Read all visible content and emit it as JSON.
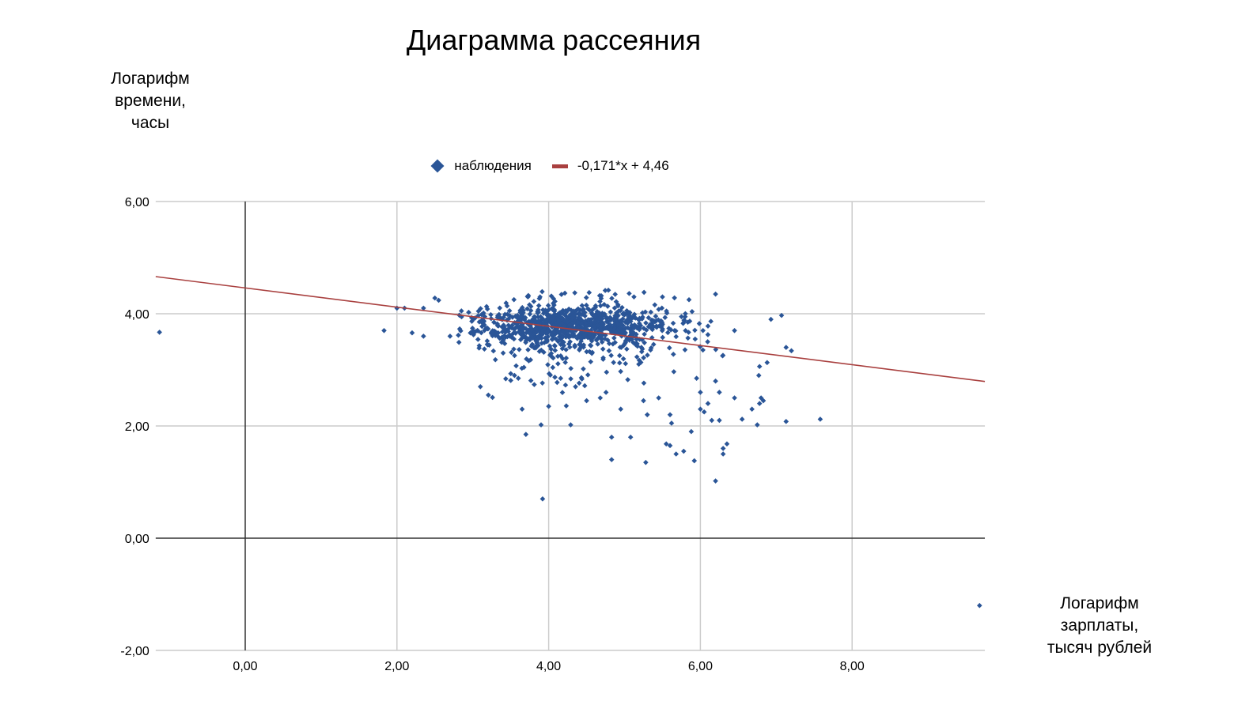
{
  "chart_data": {
    "type": "scatter",
    "title": "Диаграмма рассеяния",
    "ylabel": "Логарифм времени, часы",
    "ylabel_lines": [
      "Логарифм",
      "времени,",
      "часы"
    ],
    "xlabel": "Логарифм зарплаты, тысяч рублей",
    "xlabel_lines": [
      "Логарифм",
      "зарплаты,",
      "тысяч рублей"
    ],
    "xlim": [
      -1.18,
      9.75
    ],
    "ylim": [
      -2,
      6
    ],
    "x_ticks": [
      0,
      2,
      4,
      6,
      8
    ],
    "x_tick_labels": [
      "0,00",
      "2,00",
      "4,00",
      "6,00",
      "8,00"
    ],
    "y_ticks": [
      -2,
      0,
      2,
      4,
      6
    ],
    "y_tick_labels": [
      "-2,00",
      "0,00",
      "2,00",
      "4,00",
      "6,00"
    ],
    "grid": true,
    "legend_position": "top",
    "legend": [
      {
        "label": "наблюдения",
        "type": "marker",
        "color": "#2a5597"
      },
      {
        "label": "-0,171*x + 4,46",
        "type": "line",
        "color": "#a9403f"
      }
    ],
    "trendline": {
      "slope": -0.171,
      "intercept": 4.46,
      "color": "#a9403f"
    },
    "series": [
      {
        "name": "наблюдения",
        "color": "#2a5597",
        "outliers": [
          [
            -1.13,
            3.67
          ],
          [
            1.83,
            3.7
          ],
          [
            2.0,
            4.1
          ],
          [
            2.1,
            4.1
          ],
          [
            2.2,
            3.66
          ],
          [
            2.35,
            3.6
          ],
          [
            2.35,
            4.1
          ],
          [
            2.5,
            4.28
          ],
          [
            2.55,
            4.24
          ],
          [
            2.7,
            3.6
          ],
          [
            2.85,
            4.05
          ],
          [
            9.68,
            -1.2
          ],
          [
            3.92,
            0.7
          ],
          [
            3.7,
            1.85
          ],
          [
            3.9,
            2.02
          ],
          [
            4.29,
            2.02
          ],
          [
            3.65,
            2.3
          ],
          [
            4.0,
            2.35
          ],
          [
            4.83,
            1.8
          ],
          [
            4.83,
            1.4
          ],
          [
            5.08,
            1.8
          ],
          [
            5.28,
            1.35
          ],
          [
            5.55,
            1.68
          ],
          [
            5.6,
            1.65
          ],
          [
            5.68,
            1.5
          ],
          [
            5.78,
            1.55
          ],
          [
            5.92,
            1.38
          ],
          [
            5.88,
            1.9
          ],
          [
            5.62,
            2.05
          ],
          [
            6.2,
            1.02
          ],
          [
            6.3,
            1.5
          ],
          [
            6.35,
            1.68
          ],
          [
            6.3,
            1.6
          ],
          [
            6.55,
            2.12
          ],
          [
            6.68,
            2.3
          ],
          [
            6.75,
            2.02
          ],
          [
            6.78,
            2.4
          ],
          [
            6.83,
            2.45
          ],
          [
            6.8,
            2.5
          ],
          [
            7.13,
            2.08
          ],
          [
            7.58,
            2.12
          ],
          [
            6.93,
            3.9
          ],
          [
            7.07,
            3.97
          ],
          [
            7.13,
            3.4
          ],
          [
            7.2,
            3.34
          ],
          [
            6.88,
            3.13
          ],
          [
            6.78,
            3.06
          ],
          [
            6.77,
            2.9
          ],
          [
            6.45,
            3.7
          ],
          [
            6.1,
            3.78
          ],
          [
            6.2,
            4.35
          ],
          [
            5.85,
            4.25
          ],
          [
            5.5,
            4.3
          ],
          [
            6.0,
            2.3
          ],
          [
            6.05,
            2.25
          ],
          [
            6.15,
            2.1
          ],
          [
            6.25,
            2.1
          ],
          [
            6.1,
            2.4
          ],
          [
            5.6,
            2.2
          ],
          [
            5.45,
            2.5
          ],
          [
            5.3,
            2.2
          ],
          [
            5.25,
            2.45
          ],
          [
            4.95,
            2.3
          ],
          [
            4.68,
            2.5
          ],
          [
            4.5,
            2.45
          ],
          [
            6.45,
            2.5
          ],
          [
            6.2,
            2.8
          ],
          [
            6.0,
            2.6
          ],
          [
            6.25,
            2.6
          ],
          [
            5.95,
            2.85
          ],
          [
            3.1,
            2.7
          ],
          [
            3.55,
            2.9
          ],
          [
            3.4,
            3.3
          ],
          [
            3.6,
            2.85
          ]
        ],
        "cluster": {
          "center": [
            4.3,
            3.75
          ],
          "description": "dense cloud of ~1000 observations, x from ~2.8 to ~6.3, y mostly 3.4–4.4 with tail down to ~2.3",
          "x_range": [
            2.8,
            6.3
          ],
          "y_range": [
            2.3,
            4.45
          ]
        }
      }
    ]
  }
}
